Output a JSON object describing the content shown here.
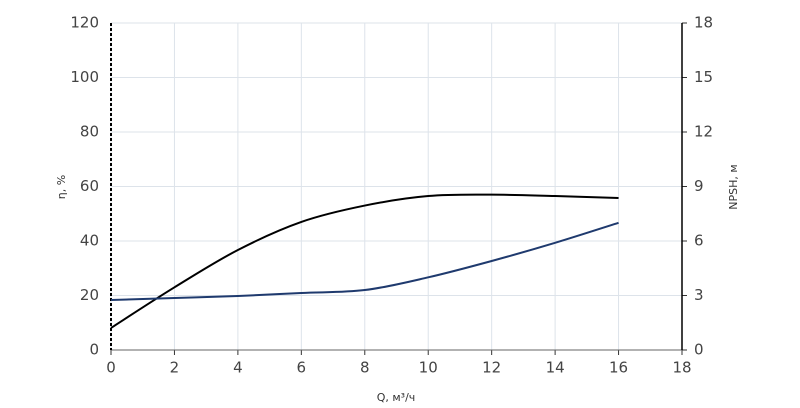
{
  "chart_data": {
    "type": "line",
    "x_label": "Q, м³/ч",
    "y_label": "η, %",
    "y2_label": "NPSH, м",
    "x": [
      0,
      2,
      4,
      6,
      8,
      10,
      12,
      14,
      16
    ],
    "series": [
      {
        "color": "#000000",
        "values": [
          8.1,
          23,
          36.7,
          47,
          53,
          56.5,
          57,
          56.5,
          55.8
        ]
      },
      {
        "color": "#1f3a6e",
        "axis": "y2",
        "values": [
          2.75,
          2.86,
          2.97,
          3.14,
          3.3,
          4.0,
          4.9,
          5.9,
          7.0
        ]
      }
    ],
    "xlim": [
      0,
      18
    ],
    "xticks": [
      0,
      2,
      4,
      6,
      8,
      10,
      12,
      14,
      16,
      18
    ],
    "ylim": [
      0,
      120
    ],
    "yticks": [
      0,
      20,
      40,
      60,
      80,
      100,
      120
    ],
    "y2lim": [
      0,
      18
    ],
    "y2ticks": [
      0,
      3,
      6,
      9,
      12,
      15,
      18
    ],
    "grid": true
  }
}
